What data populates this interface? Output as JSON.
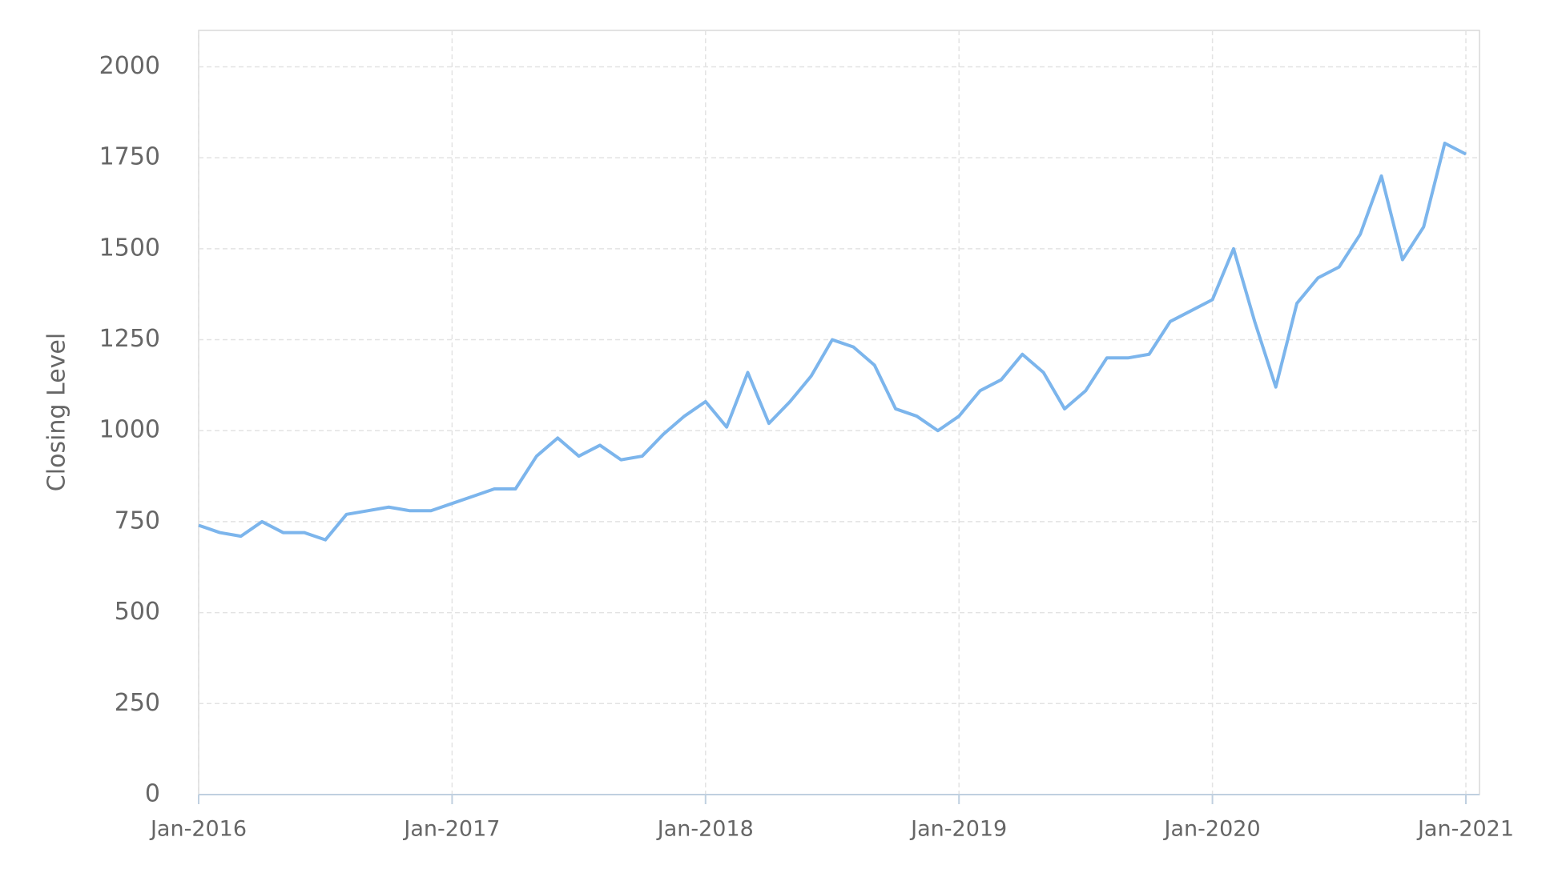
{
  "chart_data": {
    "type": "line",
    "y_label": "Closing Level",
    "x": [
      "2016-01",
      "2016-02",
      "2016-03",
      "2016-04",
      "2016-05",
      "2016-06",
      "2016-07",
      "2016-08",
      "2016-09",
      "2016-10",
      "2016-11",
      "2016-12",
      "2017-01",
      "2017-02",
      "2017-03",
      "2017-04",
      "2017-05",
      "2017-06",
      "2017-07",
      "2017-08",
      "2017-09",
      "2017-10",
      "2017-11",
      "2017-12",
      "2018-01",
      "2018-02",
      "2018-03",
      "2018-04",
      "2018-05",
      "2018-06",
      "2018-07",
      "2018-08",
      "2018-09",
      "2018-10",
      "2018-11",
      "2018-12",
      "2019-01",
      "2019-02",
      "2019-03",
      "2019-04",
      "2019-05",
      "2019-06",
      "2019-07",
      "2019-08",
      "2019-09",
      "2019-10",
      "2019-11",
      "2019-12",
      "2020-01",
      "2020-02",
      "2020-03",
      "2020-04",
      "2020-05",
      "2020-06",
      "2020-07",
      "2020-08",
      "2020-09",
      "2020-10",
      "2020-11",
      "2020-12",
      "2021-01"
    ],
    "series": [
      {
        "name": "Closing Level",
        "color": "#7cb5ec",
        "values": [
          740,
          720,
          710,
          750,
          720,
          720,
          700,
          770,
          780,
          790,
          780,
          780,
          800,
          820,
          840,
          840,
          930,
          980,
          930,
          960,
          920,
          930,
          990,
          1040,
          1080,
          1010,
          1160,
          1020,
          1080,
          1150,
          1250,
          1230,
          1180,
          1060,
          1040,
          1000,
          1040,
          1110,
          1140,
          1210,
          1160,
          1060,
          1110,
          1200,
          1200,
          1210,
          1300,
          1330,
          1360,
          1500,
          1300,
          1120,
          1350,
          1420,
          1450,
          1540,
          1700,
          1470,
          1560,
          1790,
          1760
        ]
      }
    ],
    "xlim": [
      "2016-01",
      "2021-01"
    ],
    "xticks": [
      {
        "value": "2016-01",
        "label": "Jan-2016"
      },
      {
        "value": "2017-01",
        "label": "Jan-2017"
      },
      {
        "value": "2018-01",
        "label": "Jan-2018"
      },
      {
        "value": "2019-01",
        "label": "Jan-2019"
      },
      {
        "value": "2020-01",
        "label": "Jan-2020"
      },
      {
        "value": "2021-01",
        "label": "Jan-2021"
      }
    ],
    "ylim": [
      0,
      2100
    ],
    "yticks": [
      0,
      250,
      500,
      750,
      1000,
      1250,
      1500,
      1750,
      2000
    ],
    "grid": true
  }
}
